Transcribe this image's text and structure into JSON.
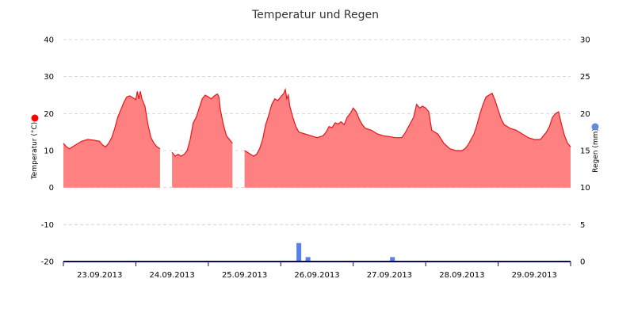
{
  "chart_data": {
    "type": "line",
    "title": "Temperatur und Regen",
    "x_start": "2013-09-22 18:00",
    "x_end": "2013-09-29 18:00",
    "x_tick_labels": [
      "23.09.2013",
      "24.09.2013",
      "25.09.2013",
      "26.09.2013",
      "27.09.2013",
      "28.09.2013",
      "29.09.2013"
    ],
    "y_left": {
      "label": "Temperatur (°C)",
      "ticks": [
        40,
        30,
        20,
        10,
        0,
        -10,
        -20
      ],
      "range": [
        -20,
        40
      ]
    },
    "y_right": {
      "label": "Regen (mm)",
      "ticks": [
        30,
        25,
        20,
        15,
        10,
        5,
        0
      ],
      "range": [
        0,
        30
      ]
    },
    "grid": true,
    "colors": {
      "temperature_line": "#e8161b",
      "temperature_fill": "#ff8080",
      "rain": "#5b7fe8",
      "axis": "#0a0a5a"
    },
    "series": [
      {
        "type": "area",
        "axis": "left",
        "points": [
          [
            "2013-09-22 18:00",
            12
          ],
          [
            "2013-09-22 19:00",
            11
          ],
          [
            "2013-09-22 20:00",
            10.5
          ],
          [
            "2013-09-22 21:00",
            11
          ],
          [
            "2013-09-22 22:00",
            11.5
          ],
          [
            "2013-09-23 00:00",
            12.5
          ],
          [
            "2013-09-23 02:00",
            13
          ],
          [
            "2013-09-23 04:00",
            12.8
          ],
          [
            "2013-09-23 06:00",
            12.5
          ],
          [
            "2013-09-23 07:00",
            11.5
          ],
          [
            "2013-09-23 08:00",
            11
          ],
          [
            "2013-09-23 09:00",
            12
          ],
          [
            "2013-09-23 10:00",
            13.5
          ],
          [
            "2013-09-23 11:00",
            16
          ],
          [
            "2013-09-23 12:00",
            19
          ],
          [
            "2013-09-23 13:00",
            21
          ],
          [
            "2013-09-23 14:00",
            23
          ],
          [
            "2013-09-23 15:00",
            24.5
          ],
          [
            "2013-09-23 16:00",
            24.8
          ],
          [
            "2013-09-23 17:00",
            24.3
          ],
          [
            "2013-09-23 18:00",
            23.8
          ],
          [
            "2013-09-23 18:30",
            26
          ],
          [
            "2013-09-23 19:00",
            24
          ],
          [
            "2013-09-23 19:30",
            26
          ],
          [
            "2013-09-23 20:00",
            24
          ],
          [
            "2013-09-23 21:00",
            22
          ],
          [
            "2013-09-23 22:00",
            17
          ],
          [
            "2013-09-23 23:00",
            13.5
          ],
          [
            "2013-09-24 00:00",
            12
          ],
          [
            "2013-09-24 01:00",
            11
          ],
          [
            "2013-09-24 02:00",
            10.5
          ],
          [
            "2013-09-24 03:00",
            null
          ],
          [
            "2013-09-24 06:00",
            9.5
          ],
          [
            "2013-09-24 07:00",
            8.5
          ],
          [
            "2013-09-24 08:00",
            9
          ],
          [
            "2013-09-24 09:00",
            8.5
          ],
          [
            "2013-09-24 10:00",
            9
          ],
          [
            "2013-09-24 11:00",
            10
          ],
          [
            "2013-09-24 12:00",
            13
          ],
          [
            "2013-09-24 13:00",
            17.5
          ],
          [
            "2013-09-24 14:00",
            19
          ],
          [
            "2013-09-24 15:00",
            21.5
          ],
          [
            "2013-09-24 16:00",
            24
          ],
          [
            "2013-09-24 17:00",
            25
          ],
          [
            "2013-09-24 18:00",
            24.5
          ],
          [
            "2013-09-24 19:00",
            24
          ],
          [
            "2013-09-24 20:00",
            24.8
          ],
          [
            "2013-09-24 21:00",
            25.3
          ],
          [
            "2013-09-24 21:30",
            24.5
          ],
          [
            "2013-09-24 22:00",
            21
          ],
          [
            "2013-09-24 23:00",
            17
          ],
          [
            "2013-09-25 00:00",
            14
          ],
          [
            "2013-09-25 01:00",
            13
          ],
          [
            "2013-09-25 02:00",
            12
          ],
          [
            "2013-09-25 03:00",
            null
          ],
          [
            "2013-09-25 06:00",
            10
          ],
          [
            "2013-09-25 07:00",
            9.5
          ],
          [
            "2013-09-25 08:00",
            9
          ],
          [
            "2013-09-25 09:00",
            8.5
          ],
          [
            "2013-09-25 10:00",
            9
          ],
          [
            "2013-09-25 11:00",
            10.5
          ],
          [
            "2013-09-25 12:00",
            13
          ],
          [
            "2013-09-25 13:00",
            17
          ],
          [
            "2013-09-25 14:00",
            19.5
          ],
          [
            "2013-09-25 15:00",
            22.5
          ],
          [
            "2013-09-25 16:00",
            24
          ],
          [
            "2013-09-25 17:00",
            23.5
          ],
          [
            "2013-09-25 18:00",
            24.5
          ],
          [
            "2013-09-25 19:00",
            25.5
          ],
          [
            "2013-09-25 19:30",
            26.5
          ],
          [
            "2013-09-25 20:00",
            24
          ],
          [
            "2013-09-25 20:30",
            25
          ],
          [
            "2013-09-25 21:00",
            22
          ],
          [
            "2013-09-25 22:00",
            19
          ],
          [
            "2013-09-25 23:00",
            16.5
          ],
          [
            "2013-09-26 00:00",
            15
          ],
          [
            "2013-09-26 02:00",
            14.5
          ],
          [
            "2013-09-26 04:00",
            14
          ],
          [
            "2013-09-26 06:00",
            13.5
          ],
          [
            "2013-09-26 08:00",
            14
          ],
          [
            "2013-09-26 09:00",
            15
          ],
          [
            "2013-09-26 10:00",
            16.5
          ],
          [
            "2013-09-26 11:00",
            16.2
          ],
          [
            "2013-09-26 12:00",
            17.5
          ],
          [
            "2013-09-26 13:00",
            17.2
          ],
          [
            "2013-09-26 14:00",
            17.8
          ],
          [
            "2013-09-26 15:00",
            17
          ],
          [
            "2013-09-26 16:00",
            19
          ],
          [
            "2013-09-26 17:00",
            20
          ],
          [
            "2013-09-26 18:00",
            21.5
          ],
          [
            "2013-09-26 19:00",
            20.5
          ],
          [
            "2013-09-26 20:00",
            18.5
          ],
          [
            "2013-09-26 21:00",
            17
          ],
          [
            "2013-09-26 22:00",
            16
          ],
          [
            "2013-09-27 00:00",
            15.5
          ],
          [
            "2013-09-27 02:00",
            14.5
          ],
          [
            "2013-09-27 04:00",
            14
          ],
          [
            "2013-09-27 06:00",
            13.8
          ],
          [
            "2013-09-27 08:00",
            13.5
          ],
          [
            "2013-09-27 10:00",
            13.5
          ],
          [
            "2013-09-27 11:00",
            14.5
          ],
          [
            "2013-09-27 12:00",
            16
          ],
          [
            "2013-09-27 13:00",
            17.5
          ],
          [
            "2013-09-27 14:00",
            19
          ],
          [
            "2013-09-27 15:00",
            22.5
          ],
          [
            "2013-09-27 16:00",
            21.5
          ],
          [
            "2013-09-27 17:00",
            22
          ],
          [
            "2013-09-27 18:00",
            21.5
          ],
          [
            "2013-09-27 19:00",
            20.5
          ],
          [
            "2013-09-27 20:00",
            15.5
          ],
          [
            "2013-09-27 21:00",
            15
          ],
          [
            "2013-09-27 22:00",
            14.5
          ],
          [
            "2013-09-28 00:00",
            12
          ],
          [
            "2013-09-28 02:00",
            10.5
          ],
          [
            "2013-09-28 04:00",
            10
          ],
          [
            "2013-09-28 06:00",
            10
          ],
          [
            "2013-09-28 07:00",
            10.5
          ],
          [
            "2013-09-28 08:00",
            11.5
          ],
          [
            "2013-09-28 09:00",
            13
          ],
          [
            "2013-09-28 10:00",
            14.5
          ],
          [
            "2013-09-28 11:00",
            17
          ],
          [
            "2013-09-28 12:00",
            20
          ],
          [
            "2013-09-28 13:00",
            22.5
          ],
          [
            "2013-09-28 14:00",
            24.5
          ],
          [
            "2013-09-28 15:00",
            25
          ],
          [
            "2013-09-28 16:00",
            25.5
          ],
          [
            "2013-09-28 17:00",
            23.5
          ],
          [
            "2013-09-28 18:00",
            21
          ],
          [
            "2013-09-28 19:00",
            18.5
          ],
          [
            "2013-09-28 20:00",
            17
          ],
          [
            "2013-09-28 22:00",
            16
          ],
          [
            "2013-09-29 00:00",
            15.5
          ],
          [
            "2013-09-29 02:00",
            14.5
          ],
          [
            "2013-09-29 04:00",
            13.5
          ],
          [
            "2013-09-29 06:00",
            13
          ],
          [
            "2013-09-29 08:00",
            13
          ],
          [
            "2013-09-29 09:00",
            14
          ],
          [
            "2013-09-29 10:00",
            15
          ],
          [
            "2013-09-29 11:00",
            16.5
          ],
          [
            "2013-09-29 12:00",
            19
          ],
          [
            "2013-09-29 13:00",
            20
          ],
          [
            "2013-09-29 14:00",
            20.5
          ],
          [
            "2013-09-29 15:00",
            17
          ],
          [
            "2013-09-29 16:00",
            14
          ],
          [
            "2013-09-29 17:00",
            12
          ],
          [
            "2013-09-29 18:00",
            11
          ]
        ]
      },
      {
        "type": "bar",
        "axis": "right",
        "points": [
          [
            "2013-09-26 00:00",
            2.5
          ],
          [
            "2013-09-26 03:00",
            0.6
          ],
          [
            "2013-09-27 07:00",
            0.6
          ]
        ]
      }
    ]
  }
}
